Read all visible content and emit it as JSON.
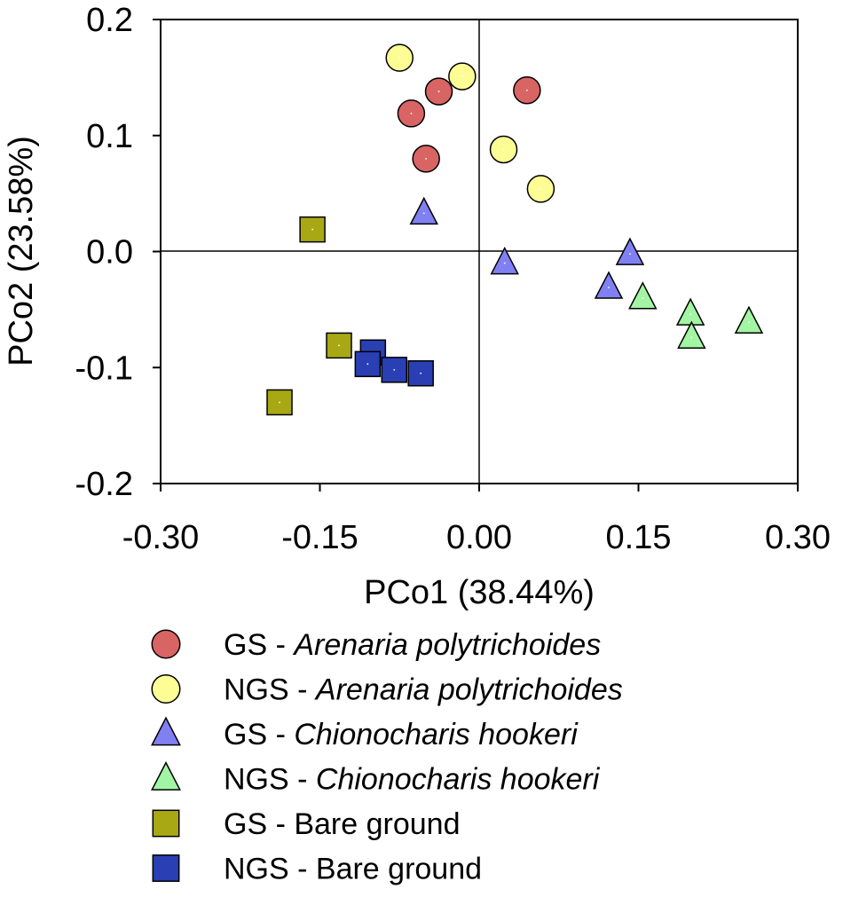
{
  "chart_data": {
    "type": "scatter",
    "title": "",
    "xlabel": "PCo1 (38.44%)",
    "ylabel": "PCo2 (23.58%)",
    "xlim": [
      -0.3,
      0.3
    ],
    "ylim": [
      -0.2,
      0.2
    ],
    "xticks": [
      -0.3,
      -0.15,
      0.0,
      0.15,
      0.3
    ],
    "xtick_labels": [
      "-0.30",
      "-0.15",
      "0.00",
      "0.15",
      "0.30"
    ],
    "yticks": [
      0.2,
      0.1,
      0.0,
      -0.1,
      -0.2
    ],
    "ytick_labels": [
      "0.2",
      "0.1",
      "0.0",
      "-0.1",
      "-0.2"
    ],
    "grid": false,
    "reference_lines": {
      "x": 0.0,
      "y": 0.0
    },
    "legend_position": "bottom",
    "series": [
      {
        "name": "GS - Arenaria polytrichoides",
        "label_prefix": "GS - ",
        "label_species": "Arenaria polytrichoides",
        "italic": true,
        "marker": "circle",
        "color": "#d96464",
        "points": [
          {
            "x": 0.045,
            "y": 0.139
          },
          {
            "x": -0.038,
            "y": 0.138
          },
          {
            "x": -0.064,
            "y": 0.119
          },
          {
            "x": -0.05,
            "y": 0.08
          }
        ]
      },
      {
        "name": "NGS - Arenaria polytrichoides",
        "label_prefix": "NGS - ",
        "label_species": "Arenaria polytrichoides",
        "italic": true,
        "marker": "circle",
        "color": "#fdfd96",
        "points": [
          {
            "x": -0.075,
            "y": 0.167
          },
          {
            "x": -0.016,
            "y": 0.151
          },
          {
            "x": 0.023,
            "y": 0.088
          },
          {
            "x": 0.058,
            "y": 0.054
          }
        ]
      },
      {
        "name": "GS - Chionocharis hookeri",
        "label_prefix": "GS - ",
        "label_species": "Chionocharis hookeri",
        "italic": true,
        "marker": "triangle",
        "color": "#8080f2",
        "points": [
          {
            "x": -0.052,
            "y": 0.033
          },
          {
            "x": 0.024,
            "y": -0.01
          },
          {
            "x": 0.142,
            "y": -0.002
          },
          {
            "x": 0.122,
            "y": -0.031
          }
        ]
      },
      {
        "name": "NGS - Chionocharis hookeri",
        "label_prefix": "NGS - ",
        "label_species": "Chionocharis hookeri",
        "italic": true,
        "marker": "triangle",
        "color": "#a2f5a2",
        "points": [
          {
            "x": 0.154,
            "y": -0.04
          },
          {
            "x": 0.199,
            "y": -0.054
          },
          {
            "x": 0.2,
            "y": -0.074
          },
          {
            "x": 0.254,
            "y": -0.061
          }
        ]
      },
      {
        "name": "GS - Bare ground",
        "label_prefix": "GS - Bare ground",
        "label_species": "",
        "italic": false,
        "marker": "square",
        "color": "#a8a814",
        "points": [
          {
            "x": -0.157,
            "y": 0.019
          },
          {
            "x": -0.132,
            "y": -0.081
          },
          {
            "x": -0.188,
            "y": -0.13
          }
        ]
      },
      {
        "name": "NGS - Bare ground",
        "label_prefix": "NGS - Bare ground",
        "label_species": "",
        "italic": false,
        "marker": "square",
        "color": "#2a3fb3",
        "points": [
          {
            "x": -0.1,
            "y": -0.087
          },
          {
            "x": -0.105,
            "y": -0.097
          },
          {
            "x": -0.08,
            "y": -0.102
          },
          {
            "x": -0.055,
            "y": -0.105
          }
        ]
      }
    ]
  }
}
